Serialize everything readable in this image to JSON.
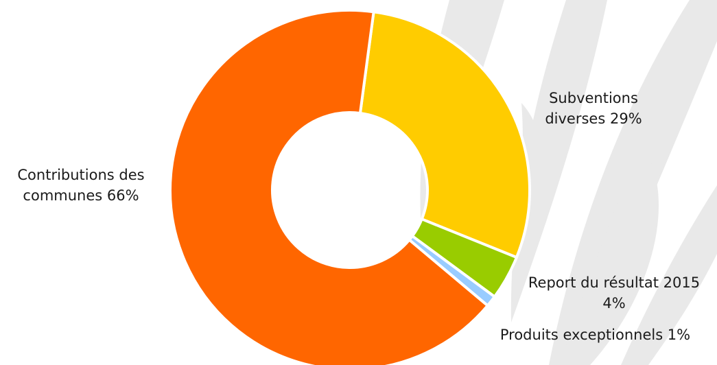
{
  "chart_data": {
    "type": "pie",
    "donut": true,
    "slices": [
      {
        "label_lines": [
          "Subventions",
          "diverses 29%"
        ],
        "value": 29,
        "color": "#FFCC00"
      },
      {
        "label_lines": [
          "Report du résultat 2015",
          "4%"
        ],
        "value": 4,
        "color": "#99CC00"
      },
      {
        "label_lines": [
          "Produits exceptionnels 1%"
        ],
        "value": 1,
        "color": "#99CCFF"
      },
      {
        "label_lines": [
          "Contributions des",
          "communes 66%"
        ],
        "value": 66,
        "color": "#FF6600"
      }
    ],
    "legend": "none",
    "background_decoration": "light-grey leaf watermark"
  }
}
